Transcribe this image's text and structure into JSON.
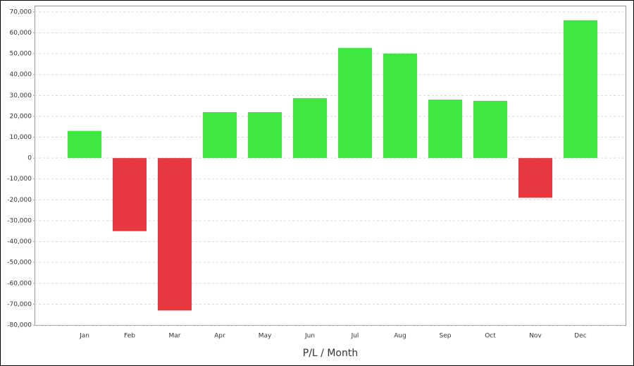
{
  "chart_data": {
    "type": "bar",
    "x_label": "P/L / Month",
    "categories": [
      "Jan",
      "Feb",
      "Mar",
      "Apr",
      "May",
      "Jun",
      "Jul",
      "Aug",
      "Sep",
      "Oct",
      "Nov",
      "Dec"
    ],
    "values": [
      13000,
      -35000,
      -73000,
      22000,
      22000,
      28700,
      52700,
      50000,
      28000,
      27400,
      -19000,
      66000
    ],
    "positive_color": "#3fe83f",
    "negative_color": "#e8383f",
    "ylim": [
      -80000,
      73000
    ],
    "yticks": [
      {
        "value": 70000,
        "label": "70,000"
      },
      {
        "value": 60000,
        "label": "60,000"
      },
      {
        "value": 50000,
        "label": "50,000"
      },
      {
        "value": 40000,
        "label": "40,000"
      },
      {
        "value": 30000,
        "label": "30,000"
      },
      {
        "value": 20000,
        "label": "20,000"
      },
      {
        "value": 10000,
        "label": "10,000"
      },
      0,
      {
        "value": -10000,
        "label": "-10,000"
      },
      {
        "value": -20000,
        "label": "-20,000"
      },
      {
        "value": -30000,
        "label": "-30,000"
      },
      {
        "value": -40000,
        "label": "-40,000"
      },
      {
        "value": -50000,
        "label": "-50,000"
      },
      {
        "value": -60000,
        "label": "-60,000"
      },
      {
        "value": -70000,
        "label": "-70,000"
      },
      {
        "value": -80000,
        "label": "-80,000"
      }
    ],
    "grid": true
  }
}
